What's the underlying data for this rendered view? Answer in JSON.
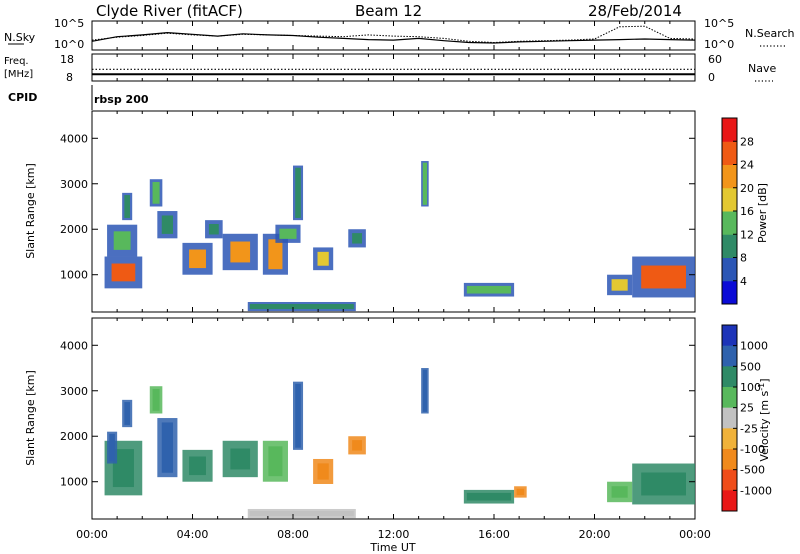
{
  "header": {
    "title": "Clyde River (fitACF)",
    "beam": "Beam 12",
    "date": "28/Feb/2014"
  },
  "chart_data": [
    {
      "type": "line",
      "name": "N.Sky / N.Search panel",
      "left_label": "N.Sky",
      "right_label": "N.Search",
      "left_ticks": [
        "10^5",
        "10^0"
      ],
      "right_ticks": [
        "10^5",
        "10^0"
      ],
      "x_range_hours": [
        0,
        24
      ],
      "nsky_series": {
        "x": [
          0,
          1,
          2,
          3,
          4,
          5,
          6,
          7,
          8,
          9,
          10,
          11,
          12,
          13,
          14,
          15,
          16,
          17,
          18,
          19,
          20,
          21,
          22,
          23,
          24
        ],
        "y": [
          1.5,
          2.3,
          2.6,
          3.0,
          2.7,
          2.4,
          2.8,
          2.6,
          2.5,
          2.2,
          2.0,
          1.8,
          1.7,
          2.0,
          1.6,
          1.3,
          1.2,
          1.4,
          1.5,
          1.6,
          1.7,
          1.8,
          1.9,
          1.8,
          1.7
        ]
      },
      "nsearch_series": {
        "x": [
          0,
          1,
          2,
          3,
          4,
          5,
          6,
          7,
          8,
          9,
          10,
          11,
          12,
          13,
          14,
          15,
          16,
          17,
          18,
          19,
          20,
          21,
          22,
          23,
          24
        ],
        "y": [
          1.7,
          2.2,
          2.5,
          2.9,
          2.6,
          2.4,
          2.7,
          2.6,
          2.5,
          2.4,
          2.3,
          2.6,
          2.4,
          2.3,
          2.0,
          1.5,
          1.3,
          1.5,
          1.6,
          1.7,
          1.9,
          4.0,
          4.1,
          2.0,
          1.9
        ]
      }
    },
    {
      "type": "line",
      "name": "Freq / Nave panel",
      "left_label": "Freq.",
      "left_unit": "[MHz]",
      "right_label": "Nave",
      "left_ticks": [
        "18",
        "8"
      ],
      "right_ticks": [
        "60",
        "0"
      ],
      "freq_mhz": 10.5,
      "nave": 26,
      "cpid_label": "CPID",
      "cpid_text": "rbsp 200"
    },
    {
      "type": "heatmap",
      "name": "Power panel",
      "ylabel": "Slant Range [km]",
      "yticks": [
        "1000",
        "2000",
        "3000",
        "4000"
      ],
      "ylim": [
        180,
        4600
      ],
      "colorbar": {
        "label": "Power [dB]",
        "tick_labels": [
          "4",
          "8",
          "12",
          "16",
          "20",
          "24",
          "28"
        ],
        "colors": [
          "#0b0bd6",
          "#2b56b5",
          "#2f8a66",
          "#58b85c",
          "#e3c832",
          "#f2951a",
          "#ef5a14",
          "#e81717"
        ]
      },
      "blobs": [
        {
          "t0": 0.5,
          "t1": 2.0,
          "r0": 700,
          "r1": 1400,
          "level": 6
        },
        {
          "t0": 0.6,
          "t1": 1.8,
          "r0": 1400,
          "r1": 2100,
          "level": 3
        },
        {
          "t0": 1.2,
          "t1": 1.6,
          "r0": 2200,
          "r1": 2800,
          "level": 2
        },
        {
          "t0": 2.3,
          "t1": 2.8,
          "r0": 2500,
          "r1": 3100,
          "level": 3
        },
        {
          "t0": 2.6,
          "t1": 3.4,
          "r0": 1800,
          "r1": 2400,
          "level": 2
        },
        {
          "t0": 3.6,
          "t1": 4.8,
          "r0": 1000,
          "r1": 1700,
          "level": 5
        },
        {
          "t0": 4.5,
          "t1": 5.2,
          "r0": 1800,
          "r1": 2200,
          "level": 2
        },
        {
          "t0": 5.2,
          "t1": 6.6,
          "r0": 1100,
          "r1": 1900,
          "level": 5
        },
        {
          "t0": 6.8,
          "t1": 7.8,
          "r0": 1000,
          "r1": 1900,
          "level": 5
        },
        {
          "t0": 7.3,
          "t1": 8.3,
          "r0": 1700,
          "r1": 2100,
          "level": 3
        },
        {
          "t0": 8.0,
          "t1": 8.4,
          "r0": 2200,
          "r1": 3400,
          "level": 2
        },
        {
          "t0": 8.8,
          "t1": 9.6,
          "r0": 1100,
          "r1": 1600,
          "level": 4
        },
        {
          "t0": 10.2,
          "t1": 10.9,
          "r0": 1600,
          "r1": 2000,
          "level": 2
        },
        {
          "t0": 13.1,
          "t1": 13.4,
          "r0": 2500,
          "r1": 3500,
          "level": 3
        },
        {
          "t0": 14.8,
          "t1": 16.8,
          "r0": 520,
          "r1": 820,
          "level": 3
        },
        {
          "t0": 20.5,
          "t1": 21.5,
          "r0": 550,
          "r1": 1000,
          "level": 4
        },
        {
          "t0": 21.5,
          "t1": 24.0,
          "r0": 500,
          "r1": 1400,
          "level": 6
        },
        {
          "t0": 6.2,
          "t1": 10.5,
          "r0": 200,
          "r1": 400,
          "level": 2
        }
      ]
    },
    {
      "type": "heatmap",
      "name": "Velocity panel",
      "ylabel": "Slant Range [km]",
      "yticks": [
        "1000",
        "2000",
        "3000",
        "4000"
      ],
      "ylim": [
        180,
        4600
      ],
      "colorbar": {
        "label": "Velocity [m s",
        "label_sup": "-1",
        "label_end": "]",
        "tick_labels": [
          "1000",
          "500",
          "100",
          "25",
          "-25",
          "-100",
          "-500",
          "-1000"
        ],
        "colors": [
          "#1d34b8",
          "#2f62ad",
          "#2f8a66",
          "#58b85c",
          "#c2c2c2",
          "#f0b23a",
          "#f08a1c",
          "#ef4d1a",
          "#e81717"
        ]
      },
      "blobs": [
        {
          "t0": 0.5,
          "t1": 2.0,
          "r0": 700,
          "r1": 1900,
          "level": 2
        },
        {
          "t0": 0.6,
          "t1": 1.0,
          "r0": 1400,
          "r1": 2100,
          "level": 1
        },
        {
          "t0": 1.2,
          "t1": 1.6,
          "r0": 2200,
          "r1": 2800,
          "level": 1
        },
        {
          "t0": 2.3,
          "t1": 2.8,
          "r0": 2500,
          "r1": 3100,
          "level": 3
        },
        {
          "t0": 2.6,
          "t1": 3.4,
          "r0": 1100,
          "r1": 2400,
          "level": 1
        },
        {
          "t0": 3.6,
          "t1": 4.8,
          "r0": 1000,
          "r1": 1700,
          "level": 2
        },
        {
          "t0": 5.2,
          "t1": 6.6,
          "r0": 1100,
          "r1": 1900,
          "level": 2
        },
        {
          "t0": 6.8,
          "t1": 7.8,
          "r0": 1000,
          "r1": 1900,
          "level": 3
        },
        {
          "t0": 8.0,
          "t1": 8.4,
          "r0": 1700,
          "r1": 3200,
          "level": 1
        },
        {
          "t0": 8.8,
          "t1": 9.6,
          "r0": 950,
          "r1": 1500,
          "level": 6
        },
        {
          "t0": 10.2,
          "t1": 10.9,
          "r0": 1600,
          "r1": 2000,
          "level": 6
        },
        {
          "t0": 13.1,
          "t1": 13.4,
          "r0": 2500,
          "r1": 3500,
          "level": 1
        },
        {
          "t0": 14.8,
          "t1": 16.8,
          "r0": 520,
          "r1": 820,
          "level": 2
        },
        {
          "t0": 16.8,
          "t1": 17.3,
          "r0": 650,
          "r1": 900,
          "level": 6
        },
        {
          "t0": 20.5,
          "t1": 21.5,
          "r0": 550,
          "r1": 1000,
          "level": 3
        },
        {
          "t0": 21.5,
          "t1": 24.0,
          "r0": 500,
          "r1": 1400,
          "level": 2
        },
        {
          "t0": 6.2,
          "t1": 10.5,
          "r0": 200,
          "r1": 400,
          "level": 4
        }
      ]
    }
  ],
  "time_axis": {
    "label": "Time UT",
    "tick_labels": [
      "00:00",
      "04:00",
      "08:00",
      "12:00",
      "16:00",
      "20:00",
      "00:00"
    ]
  }
}
